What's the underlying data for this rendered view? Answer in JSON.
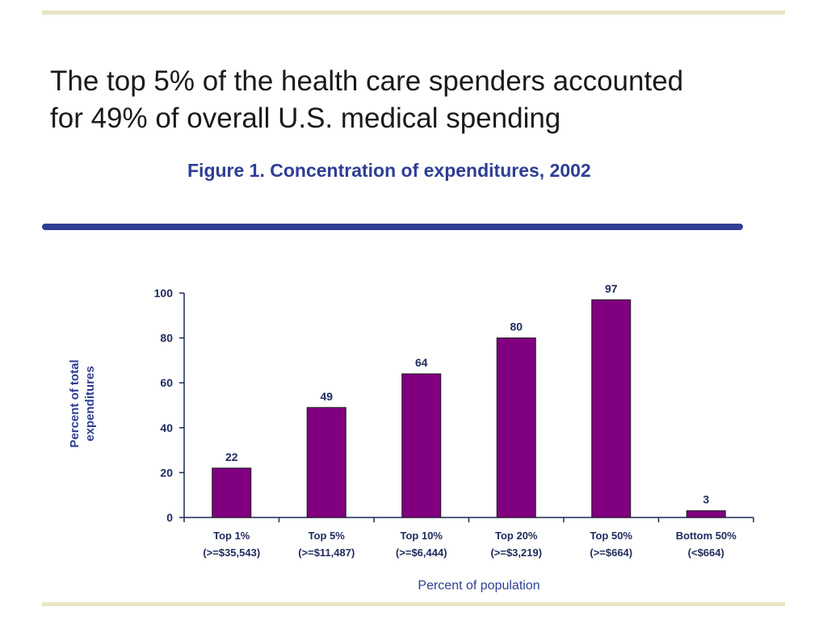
{
  "slide": {
    "title_line1": "The top 5% of the health care spenders accounted",
    "title_line2": "for 49% of overall U.S. medical spending",
    "figure_title": "Figure 1. Concentration of expenditures, 2002"
  },
  "colors": {
    "bar": "#800080",
    "accent_blue": "#2e3e94",
    "rule": "#e8e4c2"
  },
  "chart_data": {
    "type": "bar",
    "title": "Figure 1. Concentration of expenditures, 2002",
    "categories": [
      "Top 1%",
      "Top 5%",
      "Top 10%",
      "Top 20%",
      "Top 50%",
      "Bottom 50%"
    ],
    "category_sublabels": [
      "(>=$35,543)",
      "(>=$11,487)",
      "(>=$6,444)",
      "(>=$3,219)",
      "(>=$664)",
      "(<$664)"
    ],
    "values": [
      22,
      49,
      64,
      80,
      97,
      3
    ],
    "ylabel_line1": "Percent of total",
    "ylabel_line2": "expenditures",
    "xlabel": "Percent of population",
    "ylim": [
      0,
      100
    ],
    "yticks": [
      0,
      20,
      40,
      60,
      80,
      100
    ],
    "grid": false,
    "legend": "none"
  }
}
